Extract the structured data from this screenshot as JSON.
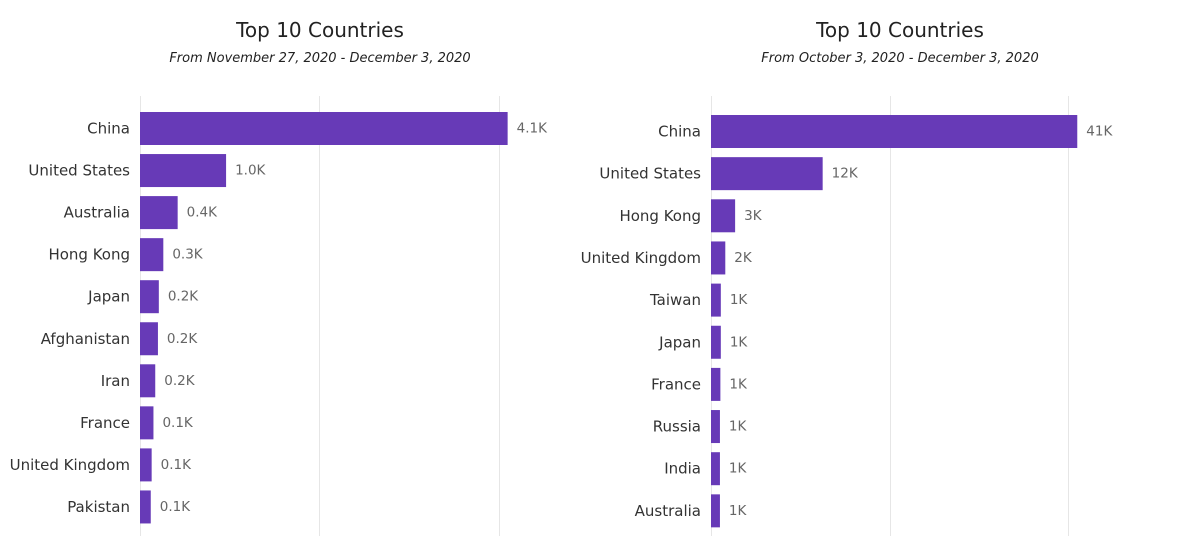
{
  "colors": {
    "bar": "#673AB7",
    "grid": "#e6e6e6",
    "background": "#ffffff"
  },
  "chart_data": [
    {
      "type": "bar",
      "orientation": "horizontal",
      "title": "Top 10 Countries",
      "subtitle": "From November 27, 2020 - December 3, 2020",
      "categories": [
        "China",
        "United States",
        "Australia",
        "Hong Kong",
        "Japan",
        "Afghanistan",
        "Iran",
        "France",
        "United Kingdom",
        "Pakistan"
      ],
      "values": [
        4.1,
        0.96,
        0.42,
        0.26,
        0.21,
        0.2,
        0.17,
        0.15,
        0.13,
        0.12
      ],
      "value_labels": [
        "4.1K",
        "1.0K",
        "0.4K",
        "0.3K",
        "0.2K",
        "0.2K",
        "0.2K",
        "0.1K",
        "0.1K",
        "0.1K"
      ],
      "xlim": [
        0,
        6
      ],
      "x_gridlines": [
        0,
        2,
        4
      ],
      "grid": true,
      "legend": "none"
    },
    {
      "type": "bar",
      "orientation": "horizontal",
      "title": "Top 10 Countries",
      "subtitle": "From October 3, 2020 - December 3, 2020",
      "categories": [
        "China",
        "United States",
        "Hong Kong",
        "United Kingdom",
        "Taiwan",
        "Japan",
        "France",
        "Russia",
        "India",
        "Australia"
      ],
      "values": [
        41,
        12.5,
        2.7,
        1.6,
        1.1,
        1.1,
        1.05,
        1.0,
        1.0,
        1.0
      ],
      "value_labels": [
        "41K",
        "12K",
        "3K",
        "2K",
        "1K",
        "1K",
        "1K",
        "1K",
        "1K",
        "1K"
      ],
      "xlim": [
        0,
        60
      ],
      "x_gridlines": [
        0,
        20,
        40
      ],
      "grid": true,
      "legend": "none"
    }
  ]
}
